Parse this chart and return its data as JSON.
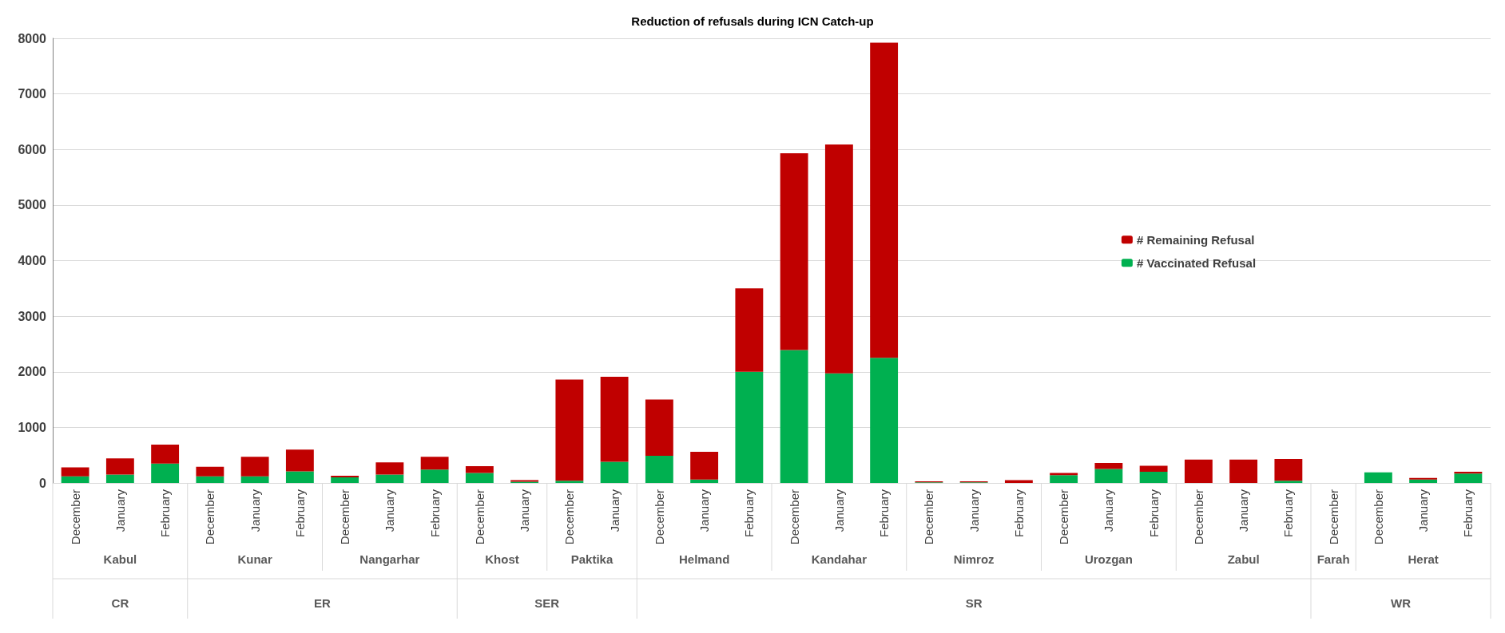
{
  "chart_data": {
    "type": "bar",
    "title": "Reduction of refusals during ICN Catch-up",
    "stacked": true,
    "categories": [
      "December",
      "January",
      "February",
      "December",
      "January",
      "February",
      "December",
      "January",
      "February",
      "December",
      "January",
      "December",
      "January",
      "December",
      "January",
      "February",
      "December",
      "January",
      "February",
      "December",
      "January",
      "February",
      "December",
      "January",
      "February",
      "December",
      "January",
      "February",
      "December",
      "December",
      "January",
      "February"
    ],
    "series": [
      {
        "name": "# Vaccinated Refusal",
        "color": "#00b050",
        "values": [
          120,
          150,
          350,
          120,
          120,
          210,
          100,
          150,
          240,
          180,
          20,
          40,
          380,
          490,
          60,
          2000,
          2390,
          1970,
          2250,
          10,
          10,
          0,
          140,
          250,
          200,
          0,
          0,
          40,
          0,
          190,
          60,
          170
        ]
      },
      {
        "name": "# Remaining Refusal",
        "color": "#c00000",
        "values": [
          160,
          290,
          340,
          170,
          350,
          390,
          30,
          220,
          230,
          120,
          30,
          1820,
          1530,
          1010,
          500,
          1500,
          3540,
          4120,
          5670,
          20,
          20,
          50,
          40,
          110,
          110,
          420,
          420,
          390,
          0,
          0,
          30,
          30
        ]
      }
    ],
    "ylim": [
      0,
      8000
    ],
    "yticks": [
      0,
      1000,
      2000,
      3000,
      4000,
      5000,
      6000,
      7000,
      8000
    ],
    "grid": "y",
    "legend": "right",
    "annotations": [
      "Kabul",
      "Kunar",
      "Nangarhar",
      "Khost",
      "Paktika",
      "Helmand",
      "Kandahar",
      "Nimroz",
      "Urozgan",
      "Zabul",
      "Farah",
      "Herat",
      "CR",
      "ER",
      "SER",
      "SR",
      "WR"
    ]
  }
}
